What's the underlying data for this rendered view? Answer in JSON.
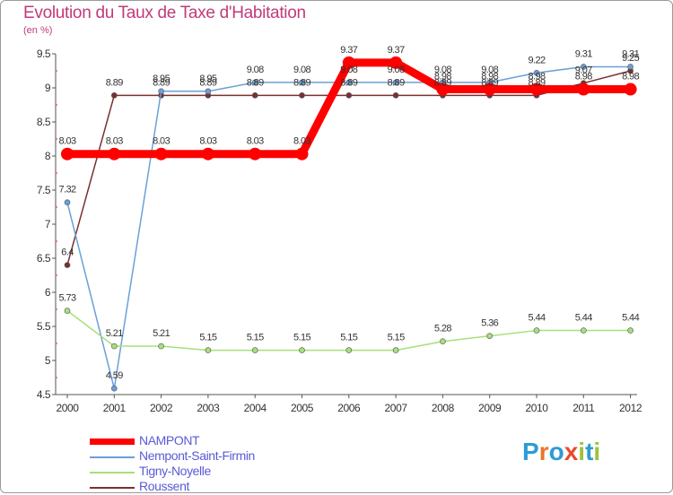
{
  "title": "Evolution du Taux de Taxe d'Habitation",
  "unit": "(en %)",
  "logo": {
    "text": "Proxiti",
    "letters": [
      "P",
      "r",
      "o",
      "x",
      "i",
      "t",
      "i"
    ],
    "colors": [
      "#2e9bd6",
      "#e8762c",
      "#2e9bd6",
      "#e84a2c",
      "#9bc23c",
      "#2e9bd6",
      "#9bc23c"
    ]
  },
  "chart_data": {
    "type": "line",
    "title": "Evolution du Taux de Taxe d'Habitation",
    "ylabel": "(en %)",
    "x": [
      "2000",
      "2001",
      "2002",
      "2003",
      "2004",
      "2005",
      "2006",
      "2007",
      "2008",
      "2009",
      "2010",
      "2011",
      "2012"
    ],
    "ylim": [
      4.5,
      9.5
    ],
    "yticks": [
      "4.5",
      "5",
      "5.5",
      "6",
      "6.5",
      "7",
      "7.5",
      "8",
      "8.5",
      "9",
      "9.5"
    ],
    "grid": "none",
    "legend": "bottom-left",
    "series": [
      {
        "name": "NAMPONT",
        "color": "#ff0000",
        "values": [
          8.03,
          8.03,
          8.03,
          8.03,
          8.03,
          8.03,
          9.37,
          9.37,
          8.98,
          8.98,
          8.98,
          8.98,
          8.98
        ],
        "labels": [
          "8.03",
          "8.03",
          "8.03",
          "8.03",
          "8.03",
          "8.03",
          "9.37",
          "9.37",
          "8.98",
          "8.98",
          "8.98",
          "8.98",
          "8.98"
        ]
      },
      {
        "name": "Nempont-Saint-Firmin",
        "color": "#6aa0d8",
        "values": [
          7.32,
          4.59,
          8.95,
          8.95,
          9.08,
          9.08,
          9.08,
          9.08,
          9.08,
          9.08,
          9.22,
          9.31,
          9.31
        ],
        "labels": [
          "7.32",
          "4.59",
          "8.95",
          "8.95",
          "9.08",
          "9.08",
          "9.08",
          "9.08",
          "9.08",
          "9.08",
          "9.22",
          "9.31",
          "9.31"
        ]
      },
      {
        "name": "Tigny-Noyelle",
        "color": "#a6e07a",
        "values": [
          5.73,
          5.21,
          5.21,
          5.15,
          5.15,
          5.15,
          5.15,
          5.15,
          5.28,
          5.36,
          5.44,
          5.44,
          5.44
        ],
        "labels": [
          "5.73",
          "5.21",
          "5.21",
          "5.15",
          "5.15",
          "5.15",
          "5.15",
          "5.15",
          "5.28",
          "5.36",
          "5.44",
          "5.44",
          "5.44"
        ]
      },
      {
        "name": "Roussent",
        "color": "#7a3030",
        "values": [
          6.4,
          8.89,
          8.89,
          8.89,
          8.89,
          8.89,
          8.89,
          8.89,
          8.89,
          8.89,
          8.89,
          9.07,
          9.25
        ],
        "labels": [
          "6.4",
          "8.89",
          "8.89",
          "8.89",
          "8.89",
          "8.89",
          "8.89",
          "8.89",
          "8.89",
          "8.89",
          "8.89",
          "9.07",
          "9.25"
        ]
      }
    ]
  }
}
